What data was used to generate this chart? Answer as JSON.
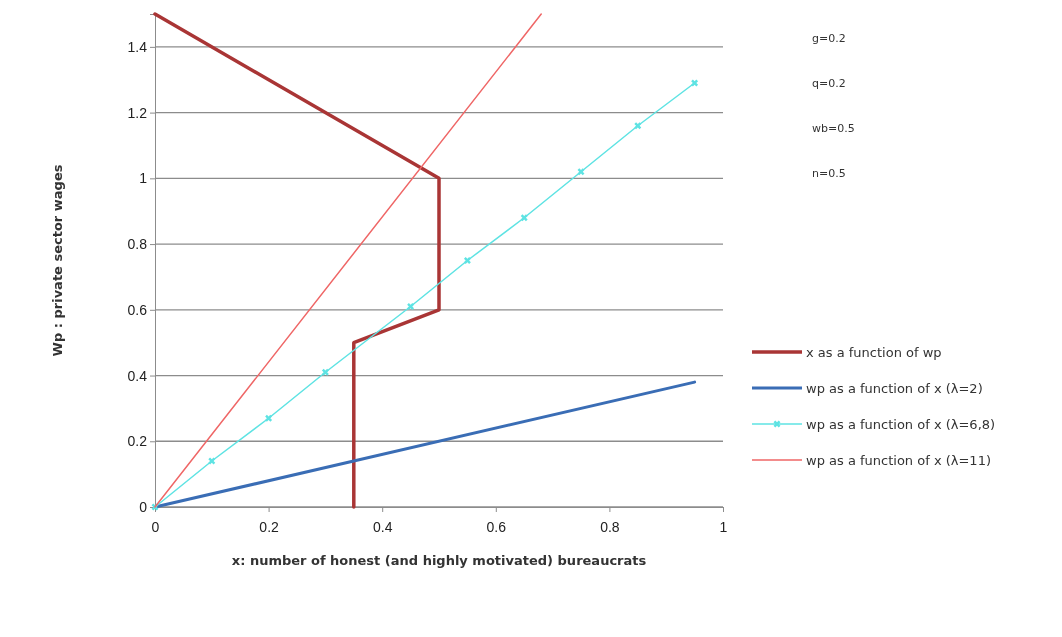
{
  "chart_data": {
    "type": "line",
    "xlabel": "x: number of honest (and highly motivated) bureaucrats",
    "ylabel": "Wp : private sector wages",
    "xlim": [
      0,
      1
    ],
    "xticks": [
      0,
      0.2,
      0.4,
      0.6,
      0.8,
      1
    ],
    "ylim": [
      0,
      1.5
    ],
    "yticks": [
      0,
      0.2,
      0.4,
      0.6,
      0.8,
      1,
      1.2,
      1.4
    ],
    "grid": "y",
    "legend": "right",
    "annotations": [
      "g=0.2",
      "q=0.2",
      "wb=0.5",
      "n=0.5"
    ],
    "series": [
      {
        "name": "x as a function of wp",
        "color": "#a93535",
        "x": [
          0,
          0.5,
          0.5,
          0.35,
          0.35
        ],
        "values": [
          1.5,
          1.0,
          0.6,
          0.5,
          0
        ],
        "marker": "none"
      },
      {
        "name": "wp as a function of x (λ=2)",
        "color": "#3a6db5",
        "x": [
          0,
          0.95
        ],
        "values": [
          0,
          0.38
        ],
        "marker": "none"
      },
      {
        "name": "wp as a function of x (λ=6,8)",
        "color": "#5ee3e3",
        "x": [
          0,
          0.1,
          0.2,
          0.3,
          0.45,
          0.55,
          0.65,
          0.75,
          0.85,
          0.95
        ],
        "values": [
          0,
          0.14,
          0.27,
          0.41,
          0.61,
          0.75,
          0.88,
          1.02,
          1.16,
          1.29
        ],
        "marker": "cross"
      },
      {
        "name": "wp as a function of x (λ=11)",
        "color": "#ef6666",
        "x": [
          0,
          0.68
        ],
        "values": [
          0,
          1.5
        ],
        "marker": "none"
      }
    ]
  }
}
